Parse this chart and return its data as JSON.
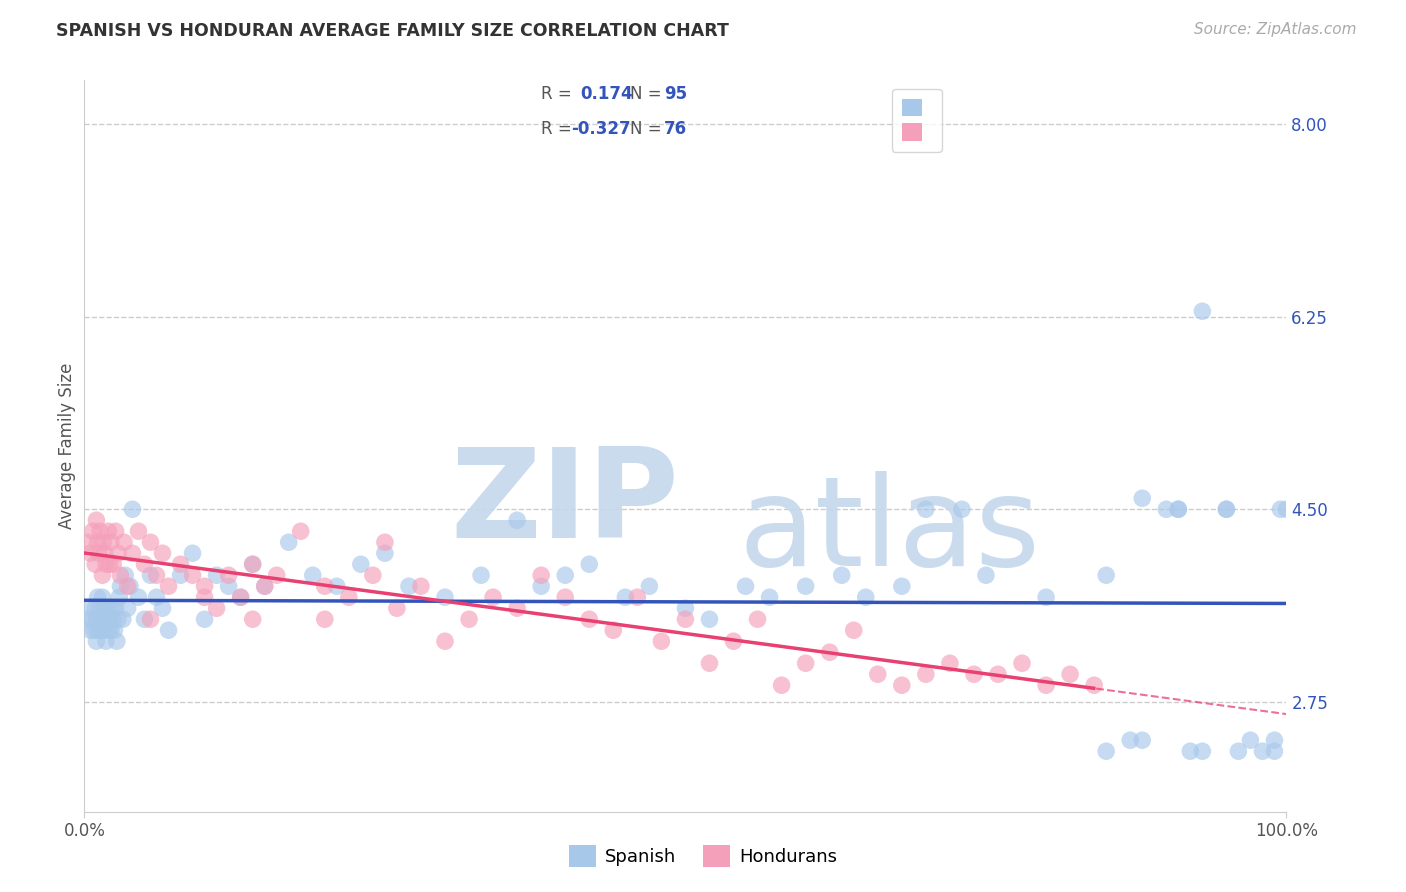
{
  "title": "SPANISH VS HONDURAN AVERAGE FAMILY SIZE CORRELATION CHART",
  "source": "Source: ZipAtlas.com",
  "ylabel": "Average Family Size",
  "y_ticks_right": [
    2.75,
    4.5,
    6.25,
    8.0
  ],
  "y_min": 1.75,
  "y_max": 8.4,
  "x_min": 0.0,
  "x_max": 100.0,
  "blue_color": "#a8c8ea",
  "pink_color": "#f5a0bb",
  "trend_blue_color": "#3355bb",
  "trend_pink_color": "#e84070",
  "legend_text_color": "#3355bb",
  "watermark_zip_color": "#c5d8ec",
  "watermark_atlas_color": "#c5d8ec",
  "spanish_x": [
    0.3,
    0.5,
    0.6,
    0.7,
    0.8,
    0.9,
    1.0,
    1.0,
    1.1,
    1.1,
    1.2,
    1.3,
    1.4,
    1.5,
    1.5,
    1.6,
    1.7,
    1.8,
    1.9,
    2.0,
    2.0,
    2.1,
    2.2,
    2.3,
    2.4,
    2.5,
    2.6,
    2.7,
    2.8,
    2.9,
    3.0,
    3.2,
    3.4,
    3.6,
    3.8,
    4.0,
    4.5,
    5.0,
    5.5,
    6.0,
    6.5,
    7.0,
    8.0,
    9.0,
    10.0,
    11.0,
    12.0,
    13.0,
    14.0,
    15.0,
    17.0,
    19.0,
    21.0,
    23.0,
    25.0,
    27.0,
    30.0,
    33.0,
    36.0,
    38.0,
    40.0,
    42.0,
    45.0,
    47.0,
    50.0,
    52.0,
    55.0,
    57.0,
    60.0,
    63.0,
    65.0,
    68.0,
    70.0,
    73.0,
    75.0,
    80.0,
    85.0,
    88.0,
    91.0,
    93.0,
    95.0,
    96.0,
    97.0,
    98.0,
    99.0,
    99.0,
    99.5,
    100.0,
    87.0,
    88.0,
    85.0,
    90.0,
    91.0,
    92.0,
    93.0,
    95.0
  ],
  "spanish_y": [
    3.5,
    3.4,
    3.6,
    3.5,
    3.4,
    3.6,
    3.3,
    3.5,
    3.7,
    3.4,
    3.5,
    3.6,
    3.4,
    3.5,
    3.7,
    3.4,
    3.6,
    3.3,
    3.5,
    3.4,
    3.6,
    3.5,
    3.4,
    3.6,
    3.5,
    3.4,
    3.6,
    3.3,
    3.5,
    3.7,
    3.8,
    3.5,
    3.9,
    3.6,
    3.8,
    4.5,
    3.7,
    3.5,
    3.9,
    3.7,
    3.6,
    3.4,
    3.9,
    4.1,
    3.5,
    3.9,
    3.8,
    3.7,
    4.0,
    3.8,
    4.2,
    3.9,
    3.8,
    4.0,
    4.1,
    3.8,
    3.7,
    3.9,
    4.4,
    3.8,
    3.9,
    4.0,
    3.7,
    3.8,
    3.6,
    3.5,
    3.8,
    3.7,
    3.8,
    3.9,
    3.7,
    3.8,
    4.5,
    4.5,
    3.9,
    3.7,
    3.9,
    4.6,
    4.5,
    6.3,
    4.5,
    2.3,
    2.4,
    2.3,
    2.3,
    2.4,
    4.5,
    4.5,
    2.4,
    2.4,
    2.3,
    4.5,
    4.5,
    2.3,
    2.3,
    4.5
  ],
  "honduran_x": [
    0.3,
    0.5,
    0.7,
    0.9,
    1.0,
    1.1,
    1.2,
    1.3,
    1.5,
    1.6,
    1.7,
    1.8,
    2.0,
    2.1,
    2.2,
    2.4,
    2.6,
    2.8,
    3.0,
    3.3,
    3.6,
    4.0,
    4.5,
    5.0,
    5.5,
    6.0,
    6.5,
    7.0,
    8.0,
    9.0,
    10.0,
    11.0,
    12.0,
    13.0,
    14.0,
    15.0,
    16.0,
    18.0,
    20.0,
    22.0,
    24.0,
    26.0,
    28.0,
    30.0,
    32.0,
    34.0,
    36.0,
    38.0,
    40.0,
    42.0,
    44.0,
    46.0,
    48.0,
    50.0,
    52.0,
    54.0,
    56.0,
    58.0,
    60.0,
    62.0,
    64.0,
    66.0,
    68.0,
    70.0,
    72.0,
    74.0,
    76.0,
    78.0,
    80.0,
    82.0,
    84.0,
    10.0,
    14.0,
    20.0,
    25.0,
    5.5
  ],
  "honduran_y": [
    4.2,
    4.1,
    4.3,
    4.0,
    4.4,
    4.2,
    4.1,
    4.3,
    3.9,
    4.2,
    4.1,
    4.0,
    4.3,
    4.0,
    4.2,
    4.0,
    4.3,
    4.1,
    3.9,
    4.2,
    3.8,
    4.1,
    4.3,
    4.0,
    4.2,
    3.9,
    4.1,
    3.8,
    4.0,
    3.9,
    3.8,
    3.6,
    3.9,
    3.7,
    4.0,
    3.8,
    3.9,
    4.3,
    3.8,
    3.7,
    3.9,
    3.6,
    3.8,
    3.3,
    3.5,
    3.7,
    3.6,
    3.9,
    3.7,
    3.5,
    3.4,
    3.7,
    3.3,
    3.5,
    3.1,
    3.3,
    3.5,
    2.9,
    3.1,
    3.2,
    3.4,
    3.0,
    2.9,
    3.0,
    3.1,
    3.0,
    3.0,
    3.1,
    2.9,
    3.0,
    2.9,
    3.7,
    3.5,
    3.5,
    4.2,
    3.5
  ]
}
